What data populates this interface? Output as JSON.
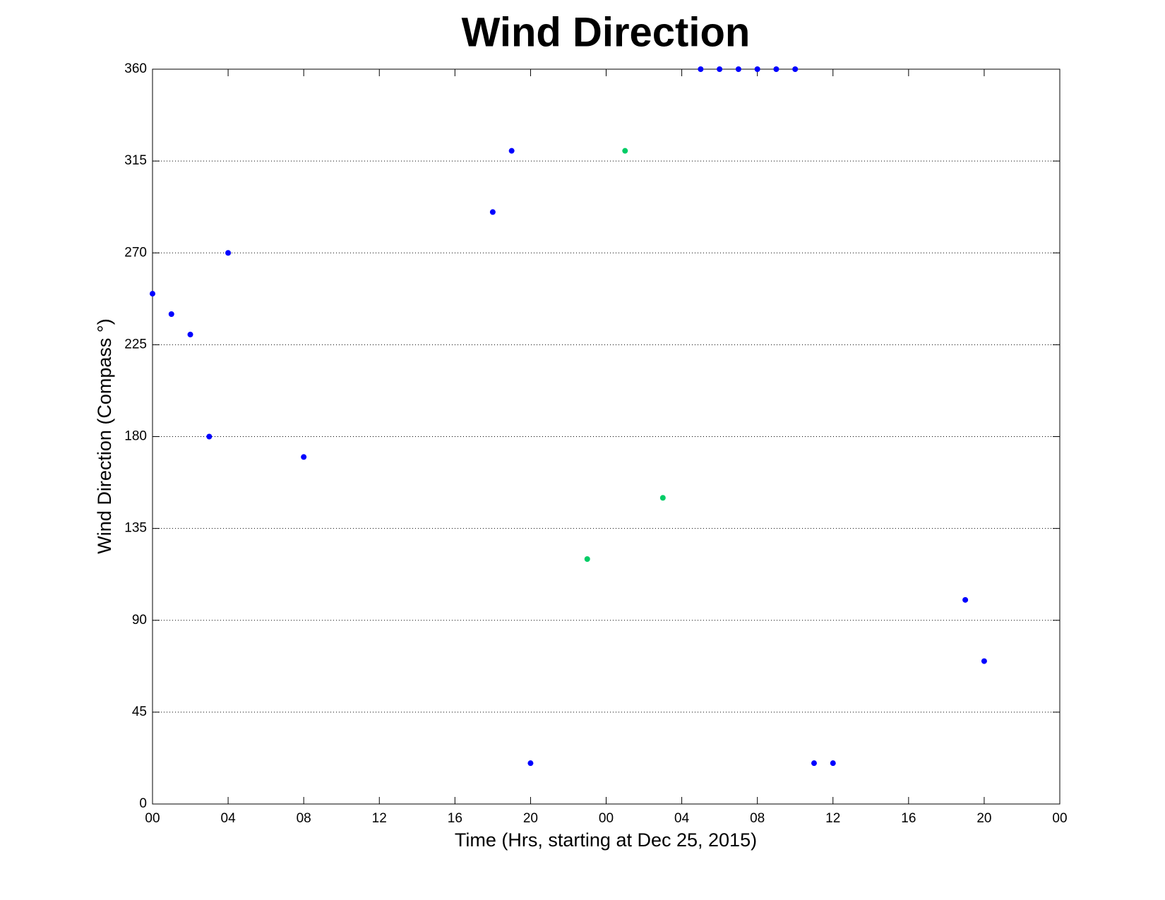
{
  "chart_data": {
    "type": "scatter",
    "title": "Wind Direction",
    "xlabel": "Time (Hrs, starting at Dec 25, 2015)",
    "ylabel": "Wind Direction (Compass °)",
    "xlim": [
      0,
      48
    ],
    "xticks": [
      {
        "value": 0,
        "label": "00"
      },
      {
        "value": 4,
        "label": "04"
      },
      {
        "value": 8,
        "label": "08"
      },
      12,
      16,
      20,
      {
        "value": 24,
        "label": "00"
      },
      {
        "value": 28,
        "label": "04"
      },
      {
        "value": 32,
        "label": "08"
      },
      {
        "value": 36,
        "label": "12"
      },
      {
        "value": 40,
        "label": "16"
      },
      {
        "value": 44,
        "label": "20"
      },
      {
        "value": 48,
        "label": "00"
      }
    ],
    "ylim": [
      0,
      360
    ],
    "yticks": [
      0,
      45,
      90,
      135,
      180,
      225,
      270,
      315,
      360
    ],
    "grid": true,
    "series": [
      {
        "color": "#0000ff",
        "x": [
          0,
          1,
          2,
          3,
          4,
          8,
          18,
          19,
          20,
          29,
          30,
          31,
          32,
          33,
          34,
          35,
          36,
          43,
          44
        ],
        "values": [
          250,
          240,
          230,
          180,
          270,
          170,
          290,
          320,
          20,
          360,
          360,
          360,
          360,
          360,
          360,
          20,
          20,
          100,
          70
        ]
      },
      {
        "color": "#00cc66",
        "x": [
          23,
          25,
          27
        ],
        "values": [
          120,
          320,
          150
        ]
      }
    ]
  }
}
